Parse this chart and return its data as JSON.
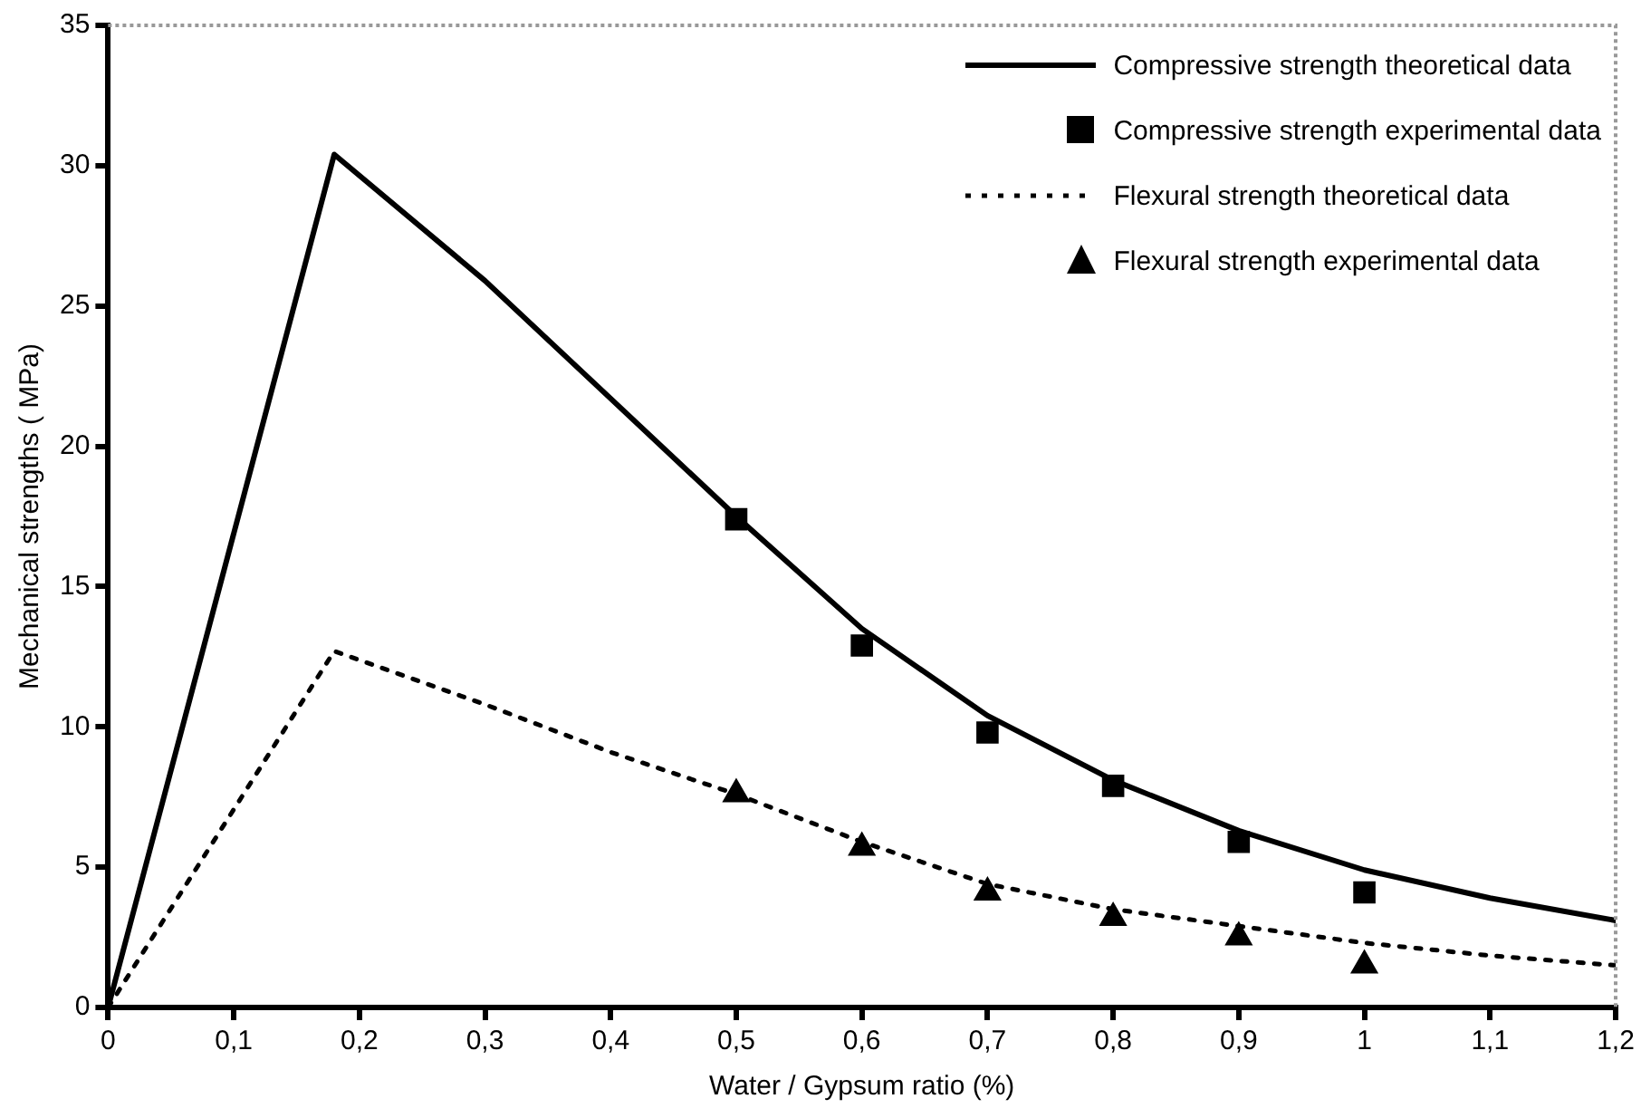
{
  "chart_data": {
    "type": "line",
    "xlabel": "Water / Gypsum ratio (%)",
    "ylabel": "Mechanical strengths ( MPa)",
    "xlim": [
      0,
      1.2
    ],
    "ylim": [
      0,
      35
    ],
    "xticks": [
      0,
      {
        "value": 0.1,
        "label": "0,1"
      },
      {
        "value": 0.2,
        "label": "0,2"
      },
      {
        "value": 0.3,
        "label": "0,3"
      },
      {
        "value": 0.4,
        "label": "0,4"
      },
      {
        "value": 0.5,
        "label": "0,5"
      },
      {
        "value": 0.6,
        "label": "0,6"
      },
      {
        "value": 0.7,
        "label": "0,7"
      },
      {
        "value": 0.8,
        "label": "0,8"
      },
      {
        "value": 0.9,
        "label": "0,9"
      },
      1,
      {
        "value": 1.1,
        "label": "1,1"
      },
      {
        "value": 1.2,
        "label": "1,2"
      }
    ],
    "yticks": [
      0,
      5,
      10,
      15,
      20,
      25,
      30,
      35
    ],
    "grid": false,
    "legend": "top right",
    "series": [
      {
        "name": "Compressive strength theoretical data",
        "type": "line",
        "color": "#000000",
        "marker": "none",
        "line_style": "solid",
        "x": [
          0,
          0.18,
          0.3,
          0.4,
          0.5,
          0.6,
          0.7,
          0.8,
          0.9,
          1.0,
          1.1,
          1.2
        ],
        "values": [
          0,
          30.4,
          25.9,
          21.7,
          17.5,
          13.5,
          10.4,
          8.1,
          6.3,
          4.9,
          3.9,
          3.1
        ]
      },
      {
        "name": "Compressive strength experimental data",
        "type": "scatter",
        "color": "#000000",
        "marker": "square",
        "x": [
          0.5,
          0.6,
          0.7,
          0.8,
          0.9,
          1.0
        ],
        "values": [
          17.4,
          12.9,
          9.8,
          7.9,
          5.9,
          4.1
        ]
      },
      {
        "name": "Flexural strength theoretical data",
        "type": "line",
        "color": "#000000",
        "marker": "none",
        "line_style": "dotted",
        "x": [
          0,
          0.18,
          0.3,
          0.4,
          0.5,
          0.6,
          0.7,
          0.8,
          0.9,
          1.0,
          1.1,
          1.2
        ],
        "values": [
          0,
          12.7,
          10.8,
          9.1,
          7.6,
          5.9,
          4.4,
          3.5,
          2.9,
          2.3,
          1.85,
          1.5
        ]
      },
      {
        "name": "Flexural strength experimental data",
        "type": "scatter",
        "color": "#000000",
        "marker": "triangle",
        "x": [
          0.5,
          0.6,
          0.7,
          0.8,
          0.9,
          1.0
        ],
        "values": [
          7.6,
          5.7,
          4.1,
          3.2,
          2.5,
          1.5
        ]
      }
    ]
  }
}
